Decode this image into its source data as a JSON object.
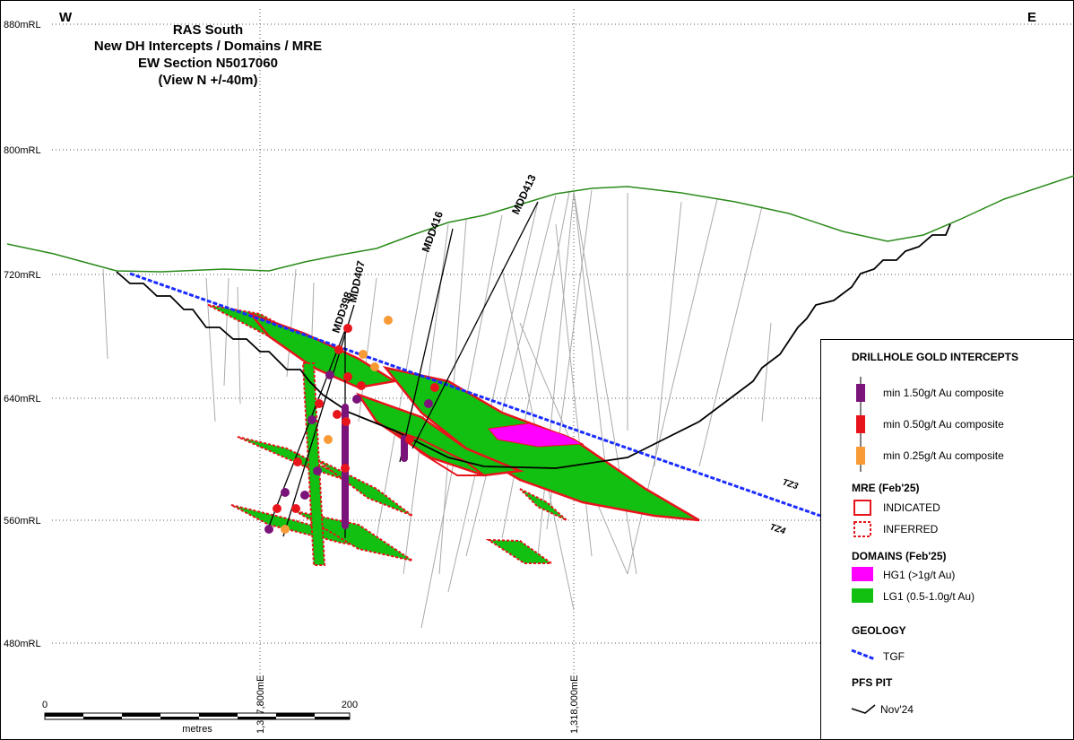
{
  "header": {
    "title_lines": [
      "RAS South",
      "New DH Intercepts / Domains / MRE",
      "EW Section N5017060",
      "(View N +/-40m)"
    ],
    "west": "W",
    "east": "E"
  },
  "rl_labels": [
    "880mRL",
    "800mRL",
    "720mRL",
    "640mRL",
    "560mRL",
    "480mRL"
  ],
  "easting_labels": [
    "1,317,800mE",
    "1,318,000mE"
  ],
  "drillholes": [
    "MDD398",
    "MDD407",
    "MDD416",
    "MDD413"
  ],
  "zones": [
    "TZ3",
    "TZ4"
  ],
  "scale_bar": {
    "start": "0",
    "end": "200",
    "unit": "metres"
  },
  "legend": {
    "sections": [
      {
        "title": "DRILLHOLE GOLD INTERCEPTS",
        "items": [
          "min 1.50g/t Au composite",
          "min 0.50g/t Au composite",
          "min 0.25g/t Au composite"
        ]
      },
      {
        "title": "MRE (Feb'25)",
        "items": [
          "INDICATED",
          "INFERRED"
        ]
      },
      {
        "title": "DOMAINS (Feb'25)",
        "items": [
          "HG1 (>1g/t Au)",
          "LG1 (0.5-1.0g/t Au)"
        ]
      },
      {
        "title": "GEOLOGY",
        "items": [
          "TGF"
        ]
      },
      {
        "title": "PFS PIT",
        "items": [
          "Nov'24"
        ]
      }
    ]
  }
}
